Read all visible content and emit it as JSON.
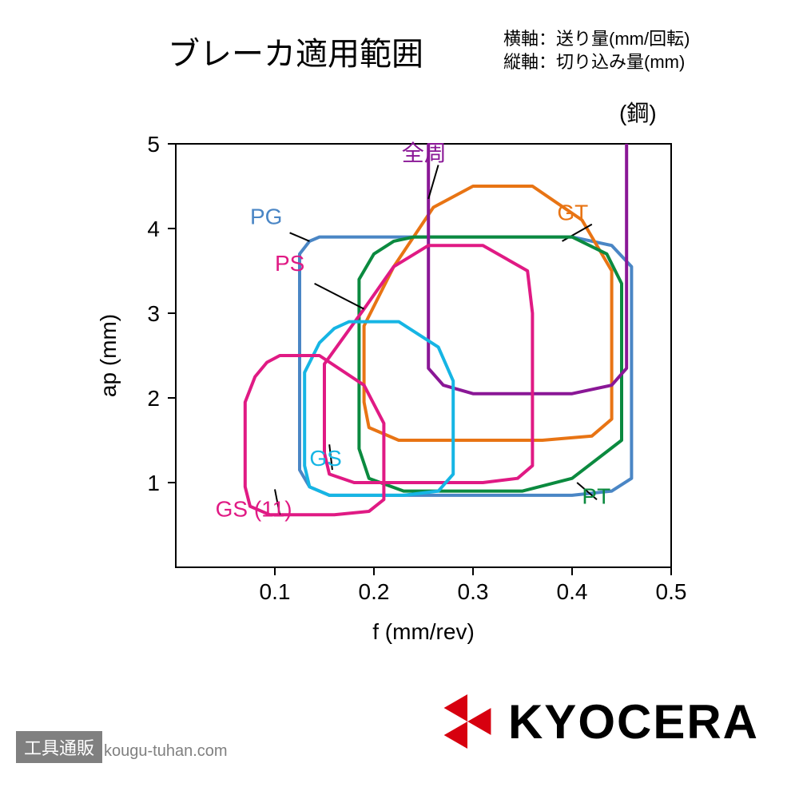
{
  "title": "ブレーカ適用範囲",
  "axis_notes": {
    "line1": "横軸：送り量(mm/回転)",
    "line2": "縦軸：切り込み量(mm)"
  },
  "material_label": "(鋼)",
  "chart": {
    "type": "region-outline",
    "background_color": "#ffffff",
    "xlabel": "f (mm/rev)",
    "ylabel": "ap (mm)",
    "label_fontsize": 28,
    "tick_fontsize": 28,
    "xlim": [
      0.0,
      0.5
    ],
    "ylim": [
      0.0,
      5.0
    ],
    "xticks": [
      0.1,
      0.2,
      0.3,
      0.4,
      0.5
    ],
    "yticks": [
      1,
      2,
      3,
      4,
      5
    ],
    "frame_color": "#000000",
    "frame_width": 2,
    "line_width": 4,
    "series": {
      "zenshuu": {
        "label": "全周",
        "color": "#8a1796",
        "leader_from": [
          0.265,
          4.75
        ],
        "leader_to": [
          0.255,
          4.35
        ],
        "label_at": [
          0.228,
          4.8
        ],
        "open_top": true,
        "points": [
          [
            0.255,
            5.0
          ],
          [
            0.255,
            2.35
          ],
          [
            0.27,
            2.15
          ],
          [
            0.3,
            2.05
          ],
          [
            0.4,
            2.05
          ],
          [
            0.44,
            2.15
          ],
          [
            0.455,
            2.35
          ],
          [
            0.455,
            5.0
          ]
        ]
      },
      "PG": {
        "label": "PG",
        "color": "#4a86c5",
        "leader_from": [
          0.115,
          3.95
        ],
        "leader_to": [
          0.135,
          3.85
        ],
        "label_at": [
          0.075,
          4.05
        ],
        "points": [
          [
            0.145,
            3.9
          ],
          [
            0.4,
            3.9
          ],
          [
            0.44,
            3.8
          ],
          [
            0.46,
            3.55
          ],
          [
            0.46,
            1.05
          ],
          [
            0.44,
            0.9
          ],
          [
            0.4,
            0.85
          ],
          [
            0.155,
            0.85
          ],
          [
            0.135,
            0.95
          ],
          [
            0.125,
            1.15
          ],
          [
            0.125,
            3.7
          ],
          [
            0.135,
            3.85
          ],
          [
            0.145,
            3.9
          ]
        ]
      },
      "PS": {
        "label": "PS",
        "color": "#e01a84",
        "leader_from": [
          0.14,
          3.35
        ],
        "leader_to": [
          0.19,
          3.05
        ],
        "label_at": [
          0.1,
          3.5
        ],
        "points": [
          [
            0.255,
            3.8
          ],
          [
            0.31,
            3.8
          ],
          [
            0.355,
            3.5
          ],
          [
            0.36,
            3.0
          ],
          [
            0.36,
            1.2
          ],
          [
            0.345,
            1.05
          ],
          [
            0.31,
            1.0
          ],
          [
            0.18,
            1.0
          ],
          [
            0.155,
            1.1
          ],
          [
            0.15,
            1.35
          ],
          [
            0.15,
            2.4
          ],
          [
            0.19,
            3.05
          ],
          [
            0.22,
            3.55
          ],
          [
            0.255,
            3.8
          ]
        ]
      },
      "GT": {
        "label": "GT",
        "color": "#e87414",
        "leader_from": [
          0.42,
          4.05
        ],
        "leader_to": [
          0.39,
          3.85
        ],
        "label_at": [
          0.385,
          4.1
        ],
        "points": [
          [
            0.3,
            4.5
          ],
          [
            0.36,
            4.5
          ],
          [
            0.41,
            4.1
          ],
          [
            0.44,
            3.5
          ],
          [
            0.44,
            1.75
          ],
          [
            0.42,
            1.55
          ],
          [
            0.37,
            1.5
          ],
          [
            0.225,
            1.5
          ],
          [
            0.195,
            1.65
          ],
          [
            0.19,
            1.95
          ],
          [
            0.19,
            2.85
          ],
          [
            0.22,
            3.55
          ],
          [
            0.26,
            4.25
          ],
          [
            0.3,
            4.5
          ]
        ]
      },
      "PT": {
        "label": "PT",
        "color": "#0b8a3f",
        "leader_from": [
          0.425,
          0.8
        ],
        "leader_to": [
          0.405,
          1.0
        ],
        "label_at": [
          0.41,
          0.75
        ],
        "points": [
          [
            0.24,
            3.9
          ],
          [
            0.4,
            3.9
          ],
          [
            0.435,
            3.7
          ],
          [
            0.45,
            3.35
          ],
          [
            0.45,
            1.5
          ],
          [
            0.4,
            1.05
          ],
          [
            0.35,
            0.9
          ],
          [
            0.23,
            0.9
          ],
          [
            0.195,
            1.05
          ],
          [
            0.185,
            1.4
          ],
          [
            0.185,
            3.4
          ],
          [
            0.2,
            3.7
          ],
          [
            0.22,
            3.85
          ],
          [
            0.24,
            3.9
          ]
        ]
      },
      "GS": {
        "label": "GS",
        "color": "#16b5e4",
        "leader_from": [
          0.158,
          1.15
        ],
        "leader_to": [
          0.155,
          1.45
        ],
        "label_at": [
          0.135,
          1.2
        ],
        "points": [
          [
            0.175,
            2.9
          ],
          [
            0.225,
            2.9
          ],
          [
            0.265,
            2.6
          ],
          [
            0.28,
            2.2
          ],
          [
            0.28,
            1.1
          ],
          [
            0.265,
            0.9
          ],
          [
            0.23,
            0.85
          ],
          [
            0.155,
            0.85
          ],
          [
            0.135,
            0.95
          ],
          [
            0.13,
            1.2
          ],
          [
            0.13,
            2.3
          ],
          [
            0.145,
            2.65
          ],
          [
            0.16,
            2.82
          ],
          [
            0.175,
            2.9
          ]
        ]
      },
      "GS11": {
        "label": "GS (11)",
        "color": "#e01a84",
        "leader_from": [
          0.105,
          0.62
        ],
        "leader_to": [
          0.1,
          0.92
        ],
        "label_at": [
          0.04,
          0.6
        ],
        "points": [
          [
            0.105,
            2.5
          ],
          [
            0.145,
            2.5
          ],
          [
            0.19,
            2.15
          ],
          [
            0.21,
            1.7
          ],
          [
            0.21,
            0.8
          ],
          [
            0.195,
            0.66
          ],
          [
            0.16,
            0.62
          ],
          [
            0.095,
            0.62
          ],
          [
            0.075,
            0.72
          ],
          [
            0.07,
            0.95
          ],
          [
            0.07,
            1.95
          ],
          [
            0.08,
            2.25
          ],
          [
            0.092,
            2.42
          ],
          [
            0.105,
            2.5
          ]
        ]
      }
    }
  },
  "brand": {
    "name": "KYOCERA",
    "logo_color": "#d7000f"
  },
  "site": {
    "label": "工具通販",
    "url": "kougu-tuhan.com"
  }
}
